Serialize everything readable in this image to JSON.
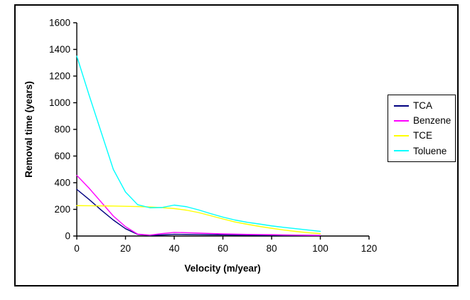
{
  "figure": {
    "background": "#ffffff",
    "border_color": "#000000"
  },
  "chart_data": {
    "type": "line",
    "title": "",
    "xlabel": "Velocity (m/year)",
    "ylabel": "Removal time (years)",
    "xlim": [
      0,
      120
    ],
    "ylim": [
      0,
      1600
    ],
    "x_ticks": [
      0,
      20,
      40,
      60,
      80,
      100,
      120
    ],
    "y_ticks": [
      0,
      200,
      400,
      600,
      800,
      1000,
      1200,
      1400,
      1600
    ],
    "grid": false,
    "legend_position": "right",
    "text_color": "#000000",
    "x": [
      0,
      5,
      10,
      15,
      20,
      25,
      30,
      35,
      40,
      45,
      50,
      55,
      60,
      65,
      70,
      75,
      80,
      85,
      90,
      95,
      100
    ],
    "series": [
      {
        "name": "TCA",
        "color": "#000080",
        "values": [
          350,
          275,
          195,
          120,
          55,
          12,
          5,
          8,
          13,
          12,
          11,
          10,
          9,
          8,
          7,
          6,
          6,
          5,
          5,
          4,
          4
        ]
      },
      {
        "name": "Benzene",
        "color": "#FF00FF",
        "values": [
          455,
          360,
          255,
          150,
          70,
          14,
          7,
          18,
          27,
          25,
          22,
          19,
          16,
          14,
          12,
          11,
          10,
          8,
          7,
          6,
          5
        ]
      },
      {
        "name": "TCE",
        "color": "#FFFF00",
        "values": [
          228,
          227,
          226,
          225,
          223,
          221,
          218,
          213,
          206,
          194,
          176,
          152,
          128,
          105,
          88,
          72,
          58,
          45,
          34,
          25,
          18
        ]
      },
      {
        "name": "Toluene",
        "color": "#00FFFF",
        "values": [
          1350,
          1060,
          780,
          500,
          330,
          235,
          212,
          214,
          232,
          220,
          196,
          168,
          142,
          120,
          103,
          90,
          76,
          65,
          55,
          45,
          35
        ]
      }
    ]
  }
}
